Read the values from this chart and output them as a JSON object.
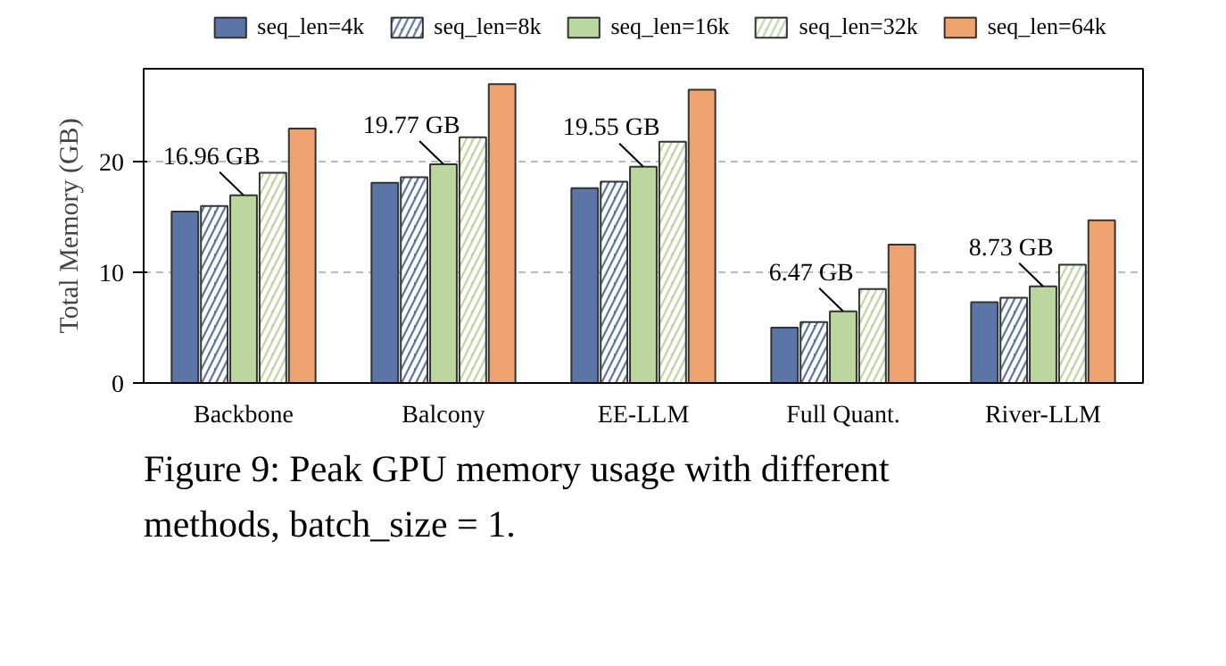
{
  "chart_data": {
    "type": "bar",
    "ylabel": "Total Memory (GB)",
    "categories": [
      "Backbone",
      "Balcony",
      "EE-LLM",
      "Full Quant.",
      "River-LLM"
    ],
    "series": [
      {
        "name": "seq_len=4k",
        "color": "#5b76a6",
        "values": [
          15.5,
          18.1,
          17.6,
          5.0,
          7.3
        ]
      },
      {
        "name": "seq_len=8k",
        "color": "#5b76a6",
        "values": [
          16.0,
          18.6,
          18.2,
          5.5,
          7.7
        ]
      },
      {
        "name": "seq_len=16k",
        "color": "#bcd6a0",
        "values": [
          16.96,
          19.77,
          19.55,
          6.47,
          8.73
        ],
        "value_labels": [
          "16.96 GB",
          "19.77 GB",
          "19.55 GB",
          "6.47 GB",
          "8.73 GB"
        ]
      },
      {
        "name": "seq_len=32k",
        "color": "#bcd6a0",
        "values": [
          19.0,
          22.2,
          21.8,
          8.5,
          10.7
        ]
      },
      {
        "name": "seq_len=64k",
        "color": "#eea36e",
        "values": [
          23.0,
          27.0,
          26.5,
          12.5,
          14.7
        ]
      }
    ],
    "ylim": [
      0,
      28.4
    ],
    "yticks": [
      0,
      10,
      20
    ],
    "grid": "y",
    "legend": "top",
    "annotations": [
      "Figure 9: Peak GPU memory usage with different methods, batch_size = 1."
    ]
  }
}
